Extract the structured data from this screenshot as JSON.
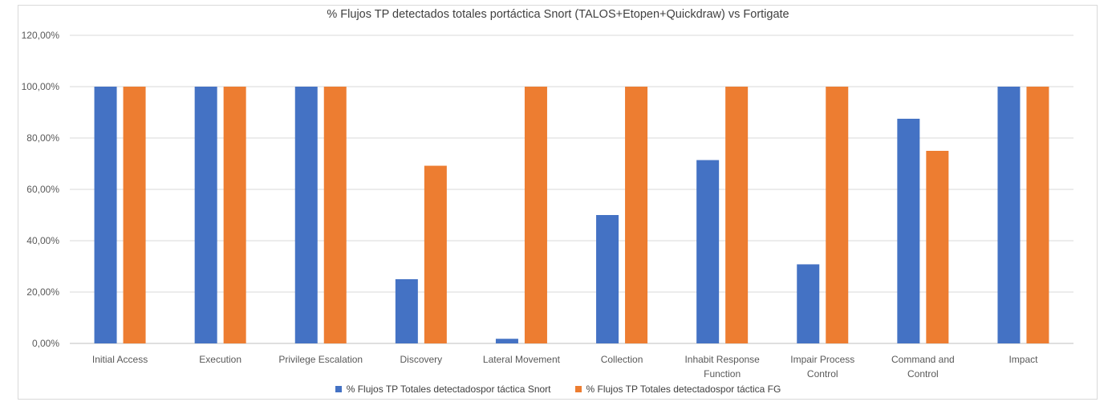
{
  "chart_data": {
    "type": "bar",
    "title": "% Flujos TP detectados totales portáctica Snort (TALOS+Etopen+Quickdraw) vs Fortigate",
    "categories": [
      [
        "Initial Access"
      ],
      [
        "Execution"
      ],
      [
        "Privilege Escalation"
      ],
      [
        "Discovery"
      ],
      [
        "Lateral Movement"
      ],
      [
        "Collection"
      ],
      [
        "Inhabit Response",
        "Function"
      ],
      [
        "Impair Process",
        "Control"
      ],
      [
        "Command and",
        "Control"
      ],
      [
        "Impact"
      ]
    ],
    "series": [
      {
        "name": "% Flujos TP Totales detectadospor táctica Snort",
        "color": "#4472c4",
        "values": [
          100,
          100,
          100,
          25,
          1.8,
          50,
          71.4,
          30.8,
          87.5,
          100
        ]
      },
      {
        "name": "% Flujos TP Totales detectadospor táctica FG",
        "color": "#ed7d31",
        "values": [
          100,
          100,
          100,
          69.2,
          100,
          100,
          100,
          100,
          75,
          100
        ]
      }
    ],
    "ylim": [
      0,
      120
    ],
    "yticks": [
      "0,00%",
      "20,00%",
      "40,00%",
      "60,00%",
      "80,00%",
      "100,00%",
      "120,00%"
    ],
    "grid": true,
    "legend": "bottom"
  }
}
